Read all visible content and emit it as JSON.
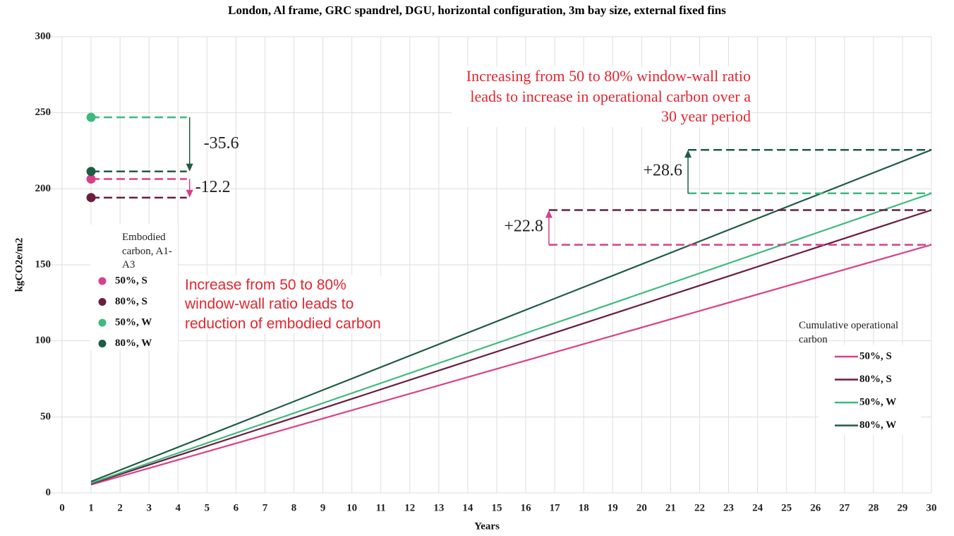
{
  "chart_data": {
    "type": "line",
    "title": "London, Al frame, GRC spandrel, DGU, horizontal configuration, 3m bay size, external fixed fins",
    "xlabel": "Years",
    "ylabel": "kgCO2e/m2",
    "x": [
      1,
      30
    ],
    "xlim": [
      0,
      30
    ],
    "xticks": [
      0,
      1,
      2,
      3,
      4,
      5,
      6,
      7,
      8,
      9,
      10,
      11,
      12,
      13,
      14,
      15,
      16,
      17,
      18,
      19,
      20,
      21,
      22,
      23,
      24,
      25,
      26,
      27,
      28,
      29,
      30
    ],
    "ylim": [
      0,
      300
    ],
    "yticks": [
      0,
      50,
      100,
      150,
      200,
      250,
      300
    ],
    "grid": true,
    "legend_title": "Cumulative operational carbon",
    "series": [
      {
        "name": "50%, S",
        "color": "#d8408a",
        "values": [
          5.4,
          163.2
        ]
      },
      {
        "name": "80%, S",
        "color": "#6a1e40",
        "values": [
          6,
          186
        ]
      },
      {
        "name": "50%, W",
        "color": "#3dba7c",
        "values": [
          6.5,
          197
        ]
      },
      {
        "name": "80%, W",
        "color": "#1f5c43",
        "values": [
          7.5,
          225.6
        ]
      }
    ],
    "embodied": {
      "legend_title": "Embodied carbon, A1-A3",
      "x": 1,
      "series": [
        {
          "name": "50%, S",
          "color": "#d8408a",
          "value": 206.4
        },
        {
          "name": "80%, S",
          "color": "#6a1e40",
          "value": 194.2
        },
        {
          "name": "50%, W",
          "color": "#3dba7c",
          "value": 247
        },
        {
          "name": "80%, W",
          "color": "#1f5c43",
          "value": 211.4
        }
      ]
    },
    "differences": [
      {
        "value": -35.6,
        "label": "-35.6"
      },
      {
        "value": -12.2,
        "label": "-12.2"
      },
      {
        "value": 28.6,
        "label": "+28.6"
      },
      {
        "value": 22.8,
        "label": "+22.8"
      }
    ],
    "annotations": [
      "Increasing from 50 to 80% window-wall ratio leads to increase in operational carbon over a 30 year period",
      "Increase from 50 to 80% window-wall ratio leads to reduction of embodied carbon"
    ]
  }
}
